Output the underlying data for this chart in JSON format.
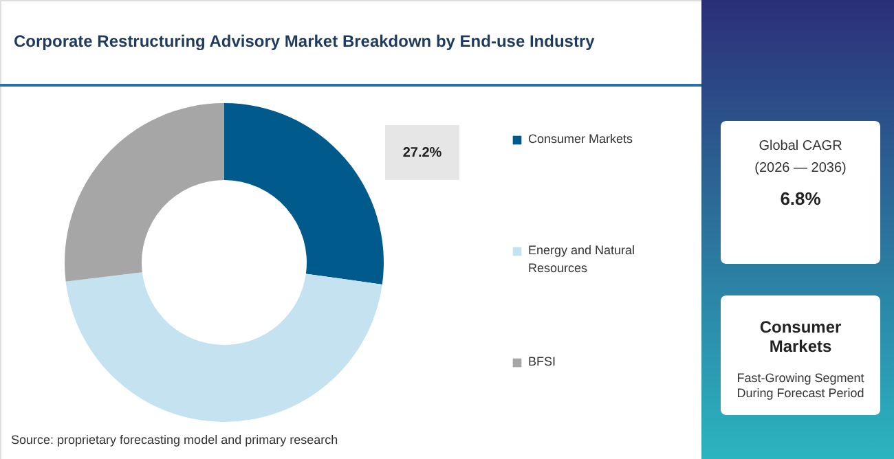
{
  "chart_data": {
    "type": "donut",
    "title": "Corporate Restructuring Advisory Market Breakdown by End-use Industry",
    "categories": [
      "Consumer Markets",
      "Energy and Natural Resources",
      "BFSI"
    ],
    "values": [
      27.2,
      45.9,
      26.9
    ],
    "colors": [
      "#005a8c",
      "#c5e2f1",
      "#a6a6a6"
    ],
    "value_labels": [
      "27.2%",
      null,
      null
    ],
    "legend": "right",
    "annotations": [
      "Source: proprietary forecasting model and primary research",
      "Global CAGR",
      "(2026 — 2036)",
      "6.8%",
      "Consumer Markets",
      "Fast-Growing Segment During Forecast Period"
    ]
  }
}
